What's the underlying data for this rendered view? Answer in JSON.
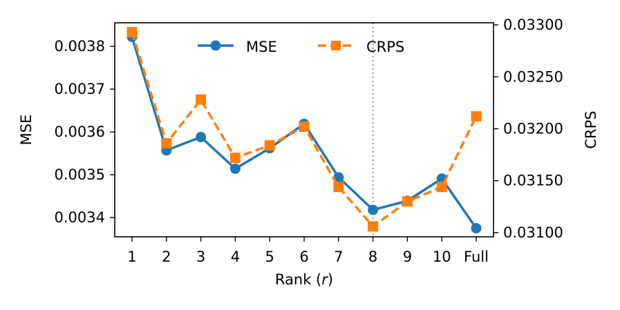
{
  "chart_data": {
    "type": "line",
    "xlabel_prefix": "Rank (",
    "xlabel_var": "r",
    "xlabel_suffix": ")",
    "categories": [
      "1",
      "2",
      "3",
      "4",
      "5",
      "6",
      "7",
      "8",
      "9",
      "10",
      "Full"
    ],
    "y_left": {
      "label": "MSE",
      "ylim": [
        0.003355,
        0.003855
      ],
      "ticks": [
        0.0034,
        0.0035,
        0.0036,
        0.0037,
        0.0038
      ],
      "tick_labels": [
        "0.0034",
        "0.0035",
        "0.0036",
        "0.0037",
        "0.0038"
      ]
    },
    "y_right": {
      "label": "CRPS",
      "ylim": [
        0.03096,
        0.03302
      ],
      "ticks": [
        0.031,
        0.0315,
        0.032,
        0.0325,
        0.033
      ],
      "tick_labels": [
        "0.03100",
        "0.03150",
        "0.03200",
        "0.03250",
        "0.03300"
      ]
    },
    "series": [
      {
        "name": "MSE",
        "axis": "left",
        "color": "#1f77b4",
        "marker": "circle",
        "linestyle": "solid",
        "values": [
          0.003822,
          0.003557,
          0.003588,
          0.003514,
          0.003562,
          0.003619,
          0.003494,
          0.003418,
          0.003439,
          0.003491,
          0.003375
        ]
      },
      {
        "name": "CRPS",
        "axis": "right",
        "color": "#ff7f0e",
        "marker": "square",
        "linestyle": "dashed",
        "values": [
          0.03293,
          0.03186,
          0.03228,
          0.03172,
          0.03184,
          0.03202,
          0.03144,
          0.03106,
          0.0313,
          0.03144,
          0.03212
        ]
      }
    ],
    "vline": {
      "category": "8",
      "color": "#999999",
      "linestyle": "dotted"
    },
    "legend_position": "top-center"
  }
}
